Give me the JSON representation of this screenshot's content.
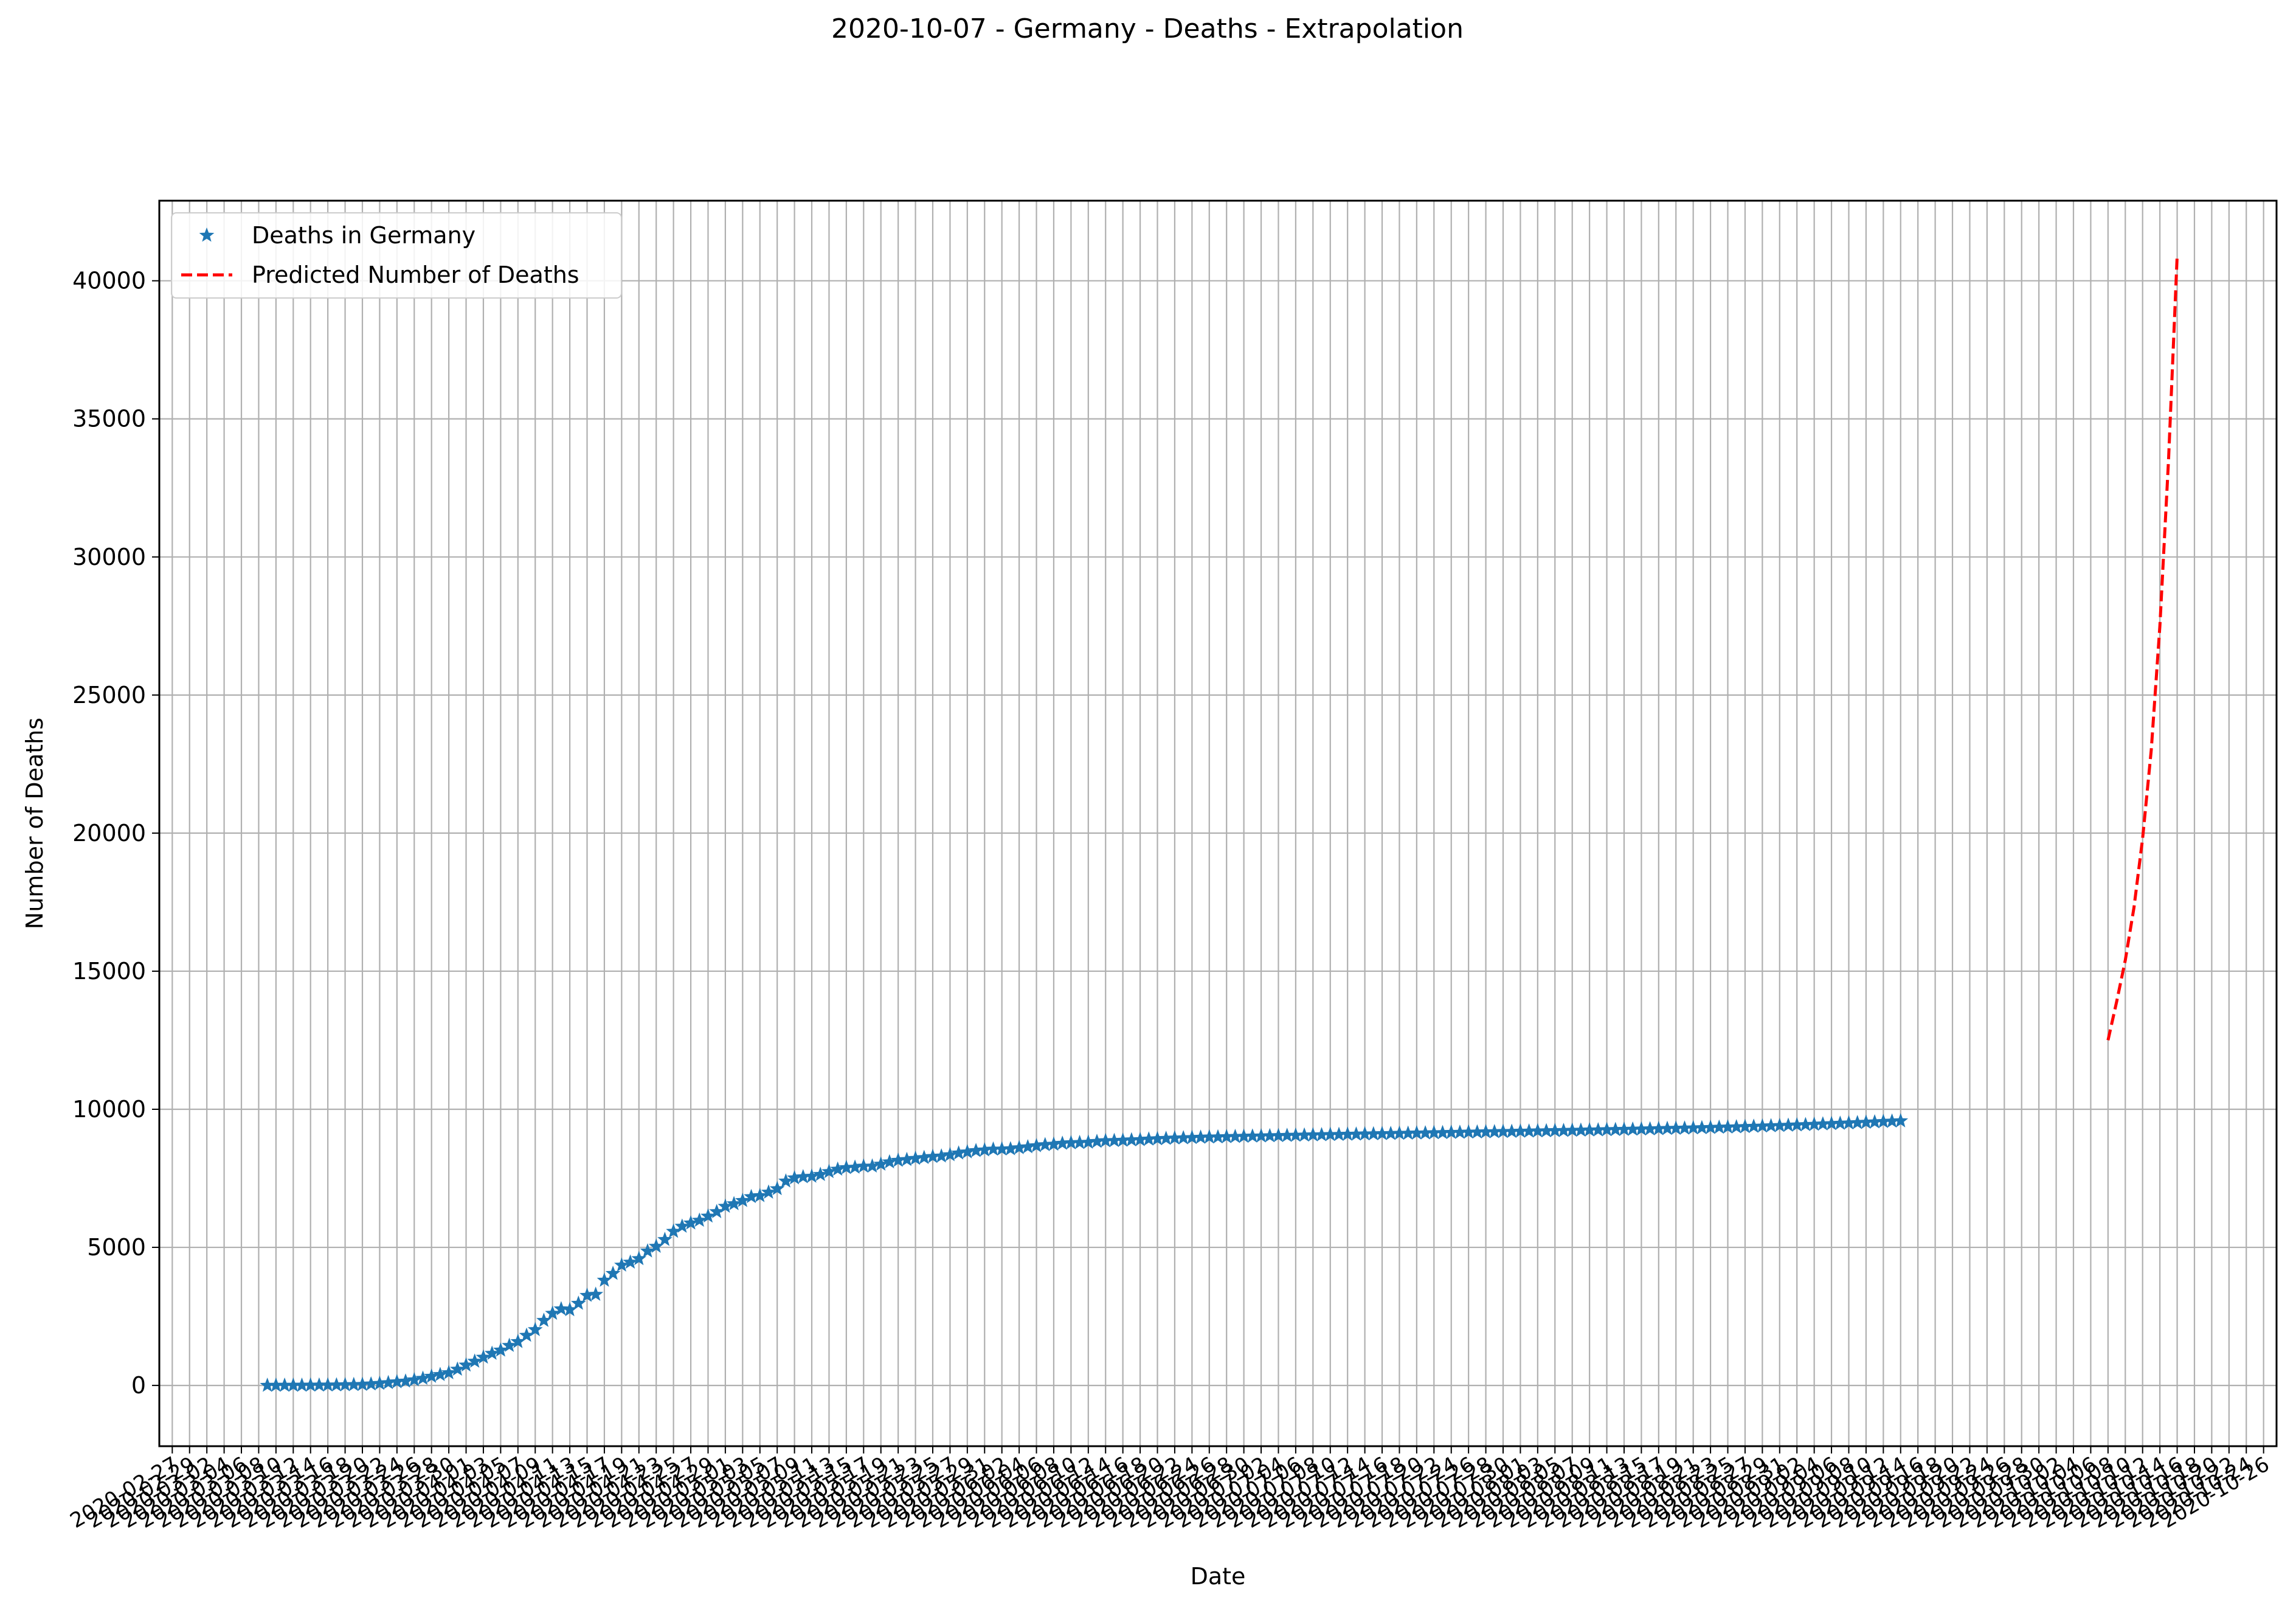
{
  "chart_data": {
    "type": "line",
    "title": "2020-10-07 - Germany - Deaths - Extrapolation",
    "xlabel": "Date",
    "ylabel": "Number of Deaths",
    "x_range": [
      "2020-02-27",
      "2020-10-26"
    ],
    "first_x_tick": "2020-02-27",
    "last_x_tick": "2020-10-26",
    "x_tick_step_days": 2,
    "ylim": [
      -2200,
      42900
    ],
    "y_ticks": [
      "0",
      "5000",
      "10000",
      "15000",
      "20000",
      "25000",
      "30000",
      "35000",
      "40000"
    ],
    "grid": true,
    "legend_position": "top-left",
    "series": [
      {
        "name": "Deaths in Germany",
        "style": "star-markers",
        "color": "#1f77b4",
        "start_date": "2020-03-09",
        "values": [
          0,
          2,
          2,
          2,
          3,
          6,
          9,
          11,
          13,
          20,
          26,
          31,
          47,
          68,
          94,
          126,
          149,
          198,
          253,
          325,
          389,
          455,
          583,
          732,
          872,
          1017,
          1158,
          1275,
          1444,
          1584,
          1810,
          2016,
          2349,
          2607,
          2767,
          2736,
          2969,
          3254,
          3294,
          3804,
          4052,
          4352,
          4459,
          4586,
          4862,
          5033,
          5279,
          5575,
          5760,
          5877,
          5976,
          6126,
          6288,
          6481,
          6575,
          6692,
          6831,
          6866,
          6993,
          7119,
          7395,
          7510,
          7549,
          7569,
          7634,
          7738,
          7824,
          7881,
          7897,
          7935,
          7938,
          8007,
          8090,
          8147,
          8174,
          8216,
          8247,
          8283,
          8302,
          8349,
          8411,
          8450,
          8498,
          8522,
          8551,
          8555,
          8563,
          8602,
          8635,
          8674,
          8711,
          8729,
          8763,
          8781,
          8790,
          8800,
          8831,
          8856,
          8863,
          8872,
          8887,
          8895,
          8914,
          8927,
          8940,
          8954,
          8961,
          8969,
          8981,
          8990,
          8995,
          9002,
          9010,
          9016,
          9023,
          9029,
          9036,
          9042,
          9048,
          9055,
          9061,
          9067,
          9073,
          9079,
          9084,
          9090,
          9095,
          9101,
          9106,
          9112,
          9117,
          9123,
          9128,
          9134,
          9139,
          9145,
          9150,
          9156,
          9161,
          9167,
          9172,
          9178,
          9183,
          9189,
          9194,
          9200,
          9205,
          9211,
          9216,
          9222,
          9227,
          9233,
          9238,
          9244,
          9249,
          9255,
          9261,
          9267,
          9273,
          9279,
          9285,
          9292,
          9299,
          9306,
          9313,
          9320,
          9327,
          9335,
          9343,
          9351,
          9359,
          9367,
          9376,
          9386,
          9396,
          9406,
          9417,
          9428,
          9439,
          9450,
          9462,
          9474,
          9486,
          9498,
          9511,
          9524,
          9537,
          9550,
          9564,
          9578
        ]
      },
      {
        "name": "Predicted Number of Deaths",
        "style": "dashed-line",
        "color": "#ff0000",
        "start_date": "2020-10-08",
        "values": [
          12500,
          13900,
          15400,
          17300,
          19800,
          23000,
          27500,
          33500,
          40900
        ]
      }
    ]
  }
}
